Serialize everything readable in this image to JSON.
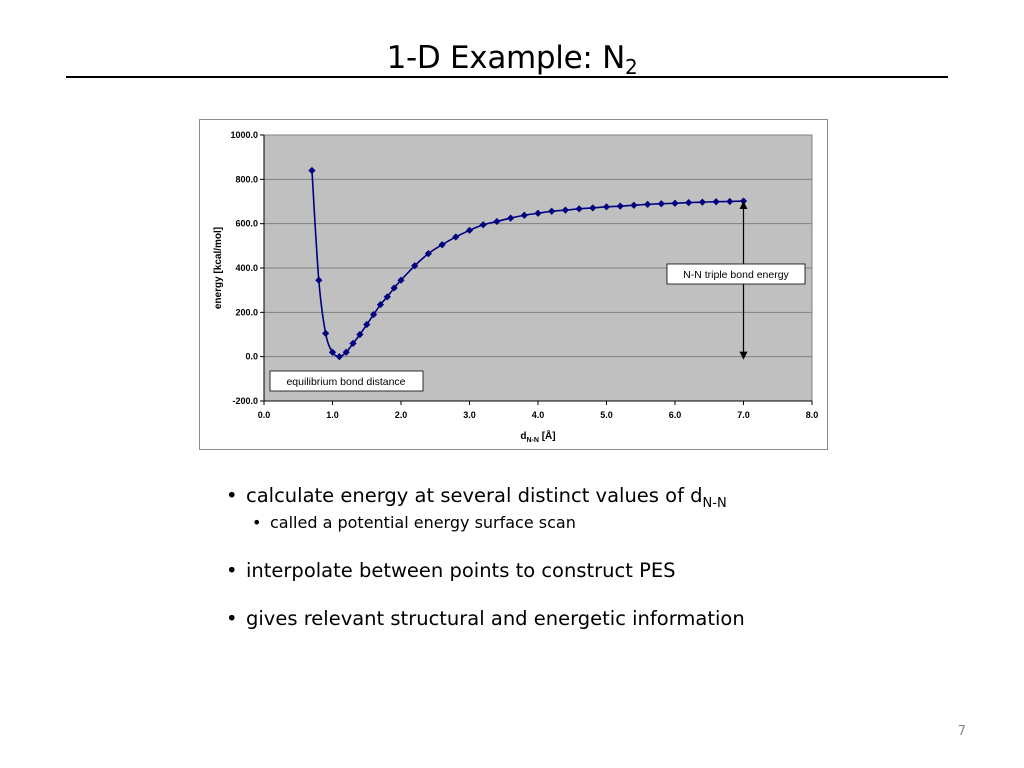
{
  "slide": {
    "title": "1-D Example: N",
    "title_subscript": "2",
    "page_number": "7"
  },
  "bullets": [
    {
      "text": "calculate energy at several distinct values of d",
      "subscript": "N-N"
    },
    {
      "sub_items": [
        "called a potential energy surface scan"
      ]
    },
    {
      "text": "interpolate between points to construct PES"
    },
    {
      "text": "gives relevant structural and energetic information"
    }
  ],
  "bullet_glyph": "•",
  "chart_data": {
    "type": "line",
    "xlabel": "d",
    "xlabel_subscript": "N-N",
    "xlabel_unit": " [Å]",
    "ylabel": "energy [kcal/mol]",
    "xlim": [
      0.0,
      8.0
    ],
    "ylim": [
      -200.0,
      1000.0
    ],
    "xticks": [
      0,
      1,
      2,
      3,
      4,
      5,
      6,
      7,
      8
    ],
    "yticks": [
      -200,
      0,
      200,
      400,
      600,
      800,
      1000
    ],
    "tick_decimals": 1,
    "grid": "horizontal",
    "plot_background": "#c0c0c0",
    "series_color": "#000080",
    "marker": "diamond",
    "series": [
      {
        "x": [
          0.7,
          0.8,
          0.9,
          1.0,
          1.1,
          1.2,
          1.3,
          1.4,
          1.5,
          1.6,
          1.7,
          1.8,
          1.9,
          2.0,
          2.2,
          2.4,
          2.6,
          2.8,
          3.0,
          3.2,
          3.4,
          3.6,
          3.8,
          4.0,
          4.2,
          4.4,
          4.6,
          4.8,
          5.0,
          5.2,
          5.4,
          5.6,
          5.8,
          6.0,
          6.2,
          6.4,
          6.6,
          6.8,
          7.0
        ],
        "y": [
          840,
          345,
          105,
          20,
          0,
          20,
          60,
          100,
          145,
          190,
          235,
          270,
          310,
          345,
          410,
          465,
          505,
          540,
          570,
          595,
          610,
          625,
          638,
          647,
          656,
          661,
          667,
          671,
          676,
          679,
          683,
          687,
          690,
          692,
          695,
          697,
          699,
          700,
          702
        ]
      }
    ],
    "annotations": {
      "equilibrium_label": "equilibrium bond distance",
      "triple_bond_label": "N-N triple bond energy",
      "arrow_x": 7.0,
      "arrow_y_top": 702,
      "arrow_y_bottom": 0
    }
  }
}
